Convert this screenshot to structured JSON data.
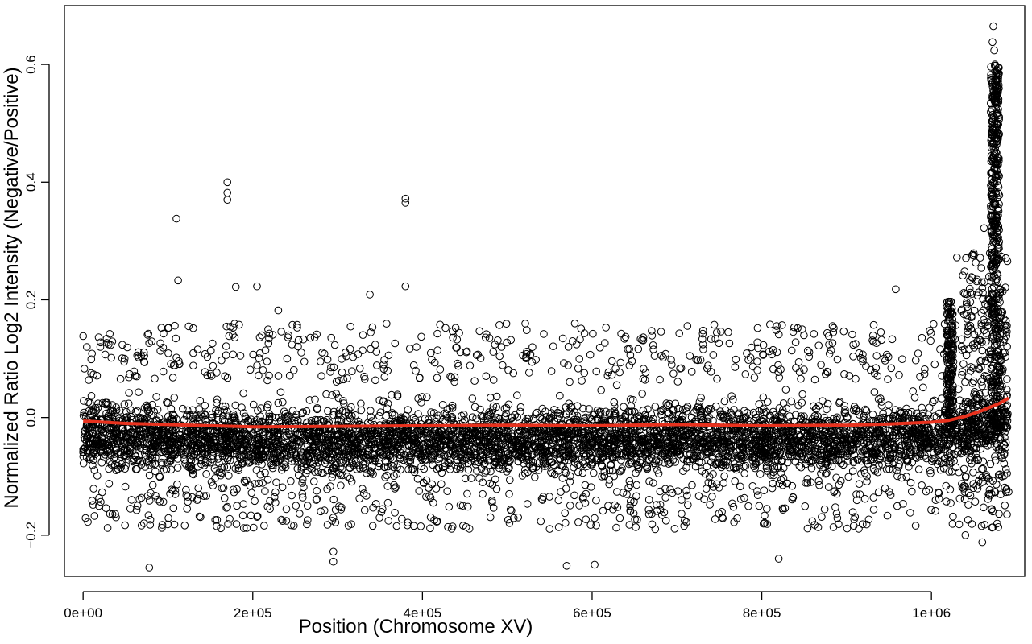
{
  "chart_data": {
    "type": "scatter",
    "title": "",
    "xlabel": "Position (Chromosome XV)",
    "ylabel": "Normalized Ratio Log2 Intensity (Negative/Positive)",
    "xlim": [
      -22000,
      1110000
    ],
    "ylim": [
      -0.27,
      0.7
    ],
    "x_ticks": [
      {
        "value": 0,
        "label": "0e+00"
      },
      {
        "value": 200000,
        "label": "2e+05"
      },
      {
        "value": 400000,
        "label": "4e+05"
      },
      {
        "value": 600000,
        "label": "6e+05"
      },
      {
        "value": 800000,
        "label": "8e+05"
      },
      {
        "value": 1000000,
        "label": "1e+06"
      }
    ],
    "y_ticks": [
      {
        "value": -0.2,
        "label": "−0.2"
      },
      {
        "value": 0.0,
        "label": "0.0"
      },
      {
        "value": 0.2,
        "label": "0.2"
      },
      {
        "value": 0.4,
        "label": "0.4"
      },
      {
        "value": 0.6,
        "label": "0.6"
      }
    ],
    "grid": false,
    "legend": "none",
    "series": [
      {
        "kind": "points",
        "marker": "open-circle",
        "color": "#000000",
        "x_range": [
          0,
          1091000
        ],
        "core_band_y": [
          -0.11,
          0.06
        ],
        "outliers": [
          [
            78000,
            -0.255
          ],
          [
            110000,
            0.338
          ],
          [
            112000,
            0.233
          ],
          [
            170000,
            0.4
          ],
          [
            170000,
            0.382
          ],
          [
            170000,
            0.37
          ],
          [
            180000,
            0.222
          ],
          [
            205000,
            0.223
          ],
          [
            230000,
            0.182
          ],
          [
            295000,
            -0.245
          ],
          [
            295000,
            -0.228
          ],
          [
            338000,
            0.209
          ],
          [
            380000,
            0.372
          ],
          [
            380000,
            0.365
          ],
          [
            380000,
            0.223
          ],
          [
            570000,
            -0.252
          ],
          [
            603000,
            -0.25
          ],
          [
            820000,
            -0.24
          ],
          [
            958000,
            0.218
          ],
          [
            1073000,
            0.665
          ],
          [
            1072000,
            0.638
          ],
          [
            1074000,
            0.624
          ],
          [
            1075000,
            0.6
          ],
          [
            1076000,
            0.55
          ],
          [
            1078000,
            0.47
          ],
          [
            1062000,
            0.322
          ],
          [
            1050000,
            0.275
          ],
          [
            1030000,
            0.272
          ],
          [
            1060000,
            -0.212
          ],
          [
            1040000,
            -0.2
          ]
        ]
      },
      {
        "kind": "line",
        "name": "",
        "color": "#e8321e",
        "x": [
          0,
          50000,
          100000,
          150000,
          200000,
          300000,
          400000,
          500000,
          600000,
          700000,
          800000,
          900000,
          950000,
          1000000,
          1020000,
          1040000,
          1060000,
          1080000,
          1091000
        ],
        "y": [
          -0.006,
          -0.01,
          -0.012,
          -0.014,
          -0.016,
          -0.015,
          -0.014,
          -0.013,
          -0.014,
          -0.012,
          -0.014,
          -0.013,
          -0.011,
          -0.008,
          -0.005,
          0.002,
          0.012,
          0.024,
          0.033
        ]
      }
    ]
  }
}
